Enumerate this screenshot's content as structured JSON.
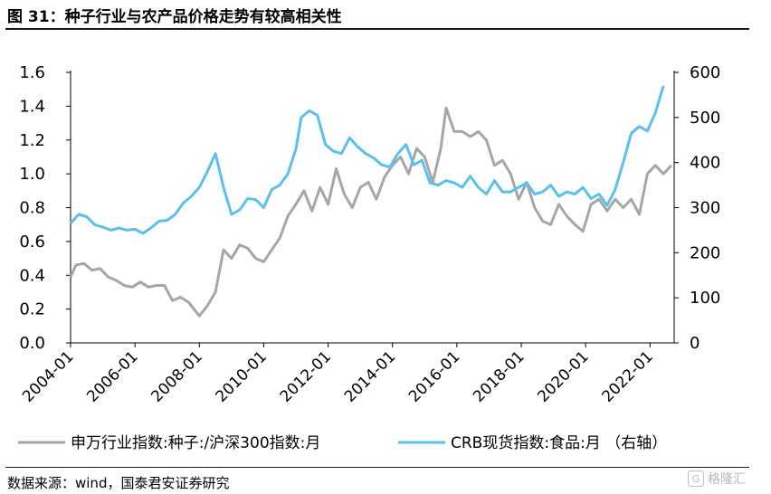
{
  "figure": {
    "title": "图 31：种子行业与农产品价格走势有较高相关性",
    "source": "数据来源：wind，国泰君安证券研究",
    "watermark": "格隆汇"
  },
  "chart_data": {
    "type": "line",
    "title": "图 31：种子行业与农产品价格走势有较高相关性",
    "xlabel": "",
    "ylabel": "",
    "x_ticks": [
      "2004-01",
      "2006-01",
      "2008-01",
      "2010-01",
      "2012-01",
      "2014-01",
      "2016-01",
      "2018-01",
      "2020-01",
      "2022-01"
    ],
    "y_left": {
      "lim": [
        0,
        1.6
      ],
      "ticks": [
        "0.0",
        "0.2",
        "0.4",
        "0.6",
        "0.8",
        "1.0",
        "1.2",
        "1.4",
        "1.6"
      ]
    },
    "y_right": {
      "lim": [
        0,
        600
      ],
      "ticks": [
        "0",
        "100",
        "200",
        "300",
        "400",
        "500",
        "600"
      ]
    },
    "grid": false,
    "legend_position": "bottom",
    "colors": {
      "seed": "#a6a6a6",
      "crb": "#5bc0eb"
    },
    "series": [
      {
        "name": "申万行业指数:种子:/沪深300指数:月",
        "axis": "left",
        "color": "#a6a6a6",
        "points": [
          [
            "2004-01",
            0.39
          ],
          [
            "2004-03",
            0.46
          ],
          [
            "2004-06",
            0.47
          ],
          [
            "2004-09",
            0.43
          ],
          [
            "2004-12",
            0.44
          ],
          [
            "2005-03",
            0.39
          ],
          [
            "2005-06",
            0.37
          ],
          [
            "2005-09",
            0.34
          ],
          [
            "2005-12",
            0.33
          ],
          [
            "2006-03",
            0.36
          ],
          [
            "2006-06",
            0.33
          ],
          [
            "2006-09",
            0.34
          ],
          [
            "2006-12",
            0.34
          ],
          [
            "2007-03",
            0.25
          ],
          [
            "2007-06",
            0.27
          ],
          [
            "2007-09",
            0.24
          ],
          [
            "2007-12",
            0.18
          ],
          [
            "2008-01",
            0.16
          ],
          [
            "2008-04",
            0.22
          ],
          [
            "2008-07",
            0.3
          ],
          [
            "2008-10",
            0.55
          ],
          [
            "2009-01",
            0.5
          ],
          [
            "2009-04",
            0.58
          ],
          [
            "2009-07",
            0.56
          ],
          [
            "2009-10",
            0.5
          ],
          [
            "2010-01",
            0.48
          ],
          [
            "2010-04",
            0.55
          ],
          [
            "2010-07",
            0.62
          ],
          [
            "2010-10",
            0.75
          ],
          [
            "2011-01",
            0.82
          ],
          [
            "2011-04",
            0.9
          ],
          [
            "2011-07",
            0.78
          ],
          [
            "2011-10",
            0.92
          ],
          [
            "2012-01",
            0.82
          ],
          [
            "2012-04",
            1.03
          ],
          [
            "2012-07",
            0.88
          ],
          [
            "2012-10",
            0.8
          ],
          [
            "2013-01",
            0.92
          ],
          [
            "2013-04",
            0.95
          ],
          [
            "2013-07",
            0.85
          ],
          [
            "2013-10",
            0.98
          ],
          [
            "2014-01",
            1.05
          ],
          [
            "2014-04",
            1.1
          ],
          [
            "2014-07",
            1.0
          ],
          [
            "2014-10",
            1.15
          ],
          [
            "2015-01",
            1.1
          ],
          [
            "2015-04",
            0.95
          ],
          [
            "2015-07",
            1.15
          ],
          [
            "2015-09",
            1.39
          ],
          [
            "2015-12",
            1.25
          ],
          [
            "2016-03",
            1.25
          ],
          [
            "2016-06",
            1.22
          ],
          [
            "2016-09",
            1.25
          ],
          [
            "2016-12",
            1.2
          ],
          [
            "2017-03",
            1.05
          ],
          [
            "2017-06",
            1.08
          ],
          [
            "2017-09",
            1.0
          ],
          [
            "2017-12",
            0.85
          ],
          [
            "2018-03",
            0.95
          ],
          [
            "2018-06",
            0.8
          ],
          [
            "2018-09",
            0.72
          ],
          [
            "2018-12",
            0.7
          ],
          [
            "2019-03",
            0.82
          ],
          [
            "2019-06",
            0.75
          ],
          [
            "2019-09",
            0.7
          ],
          [
            "2019-12",
            0.66
          ],
          [
            "2020-03",
            0.82
          ],
          [
            "2020-06",
            0.85
          ],
          [
            "2020-09",
            0.78
          ],
          [
            "2020-12",
            0.85
          ],
          [
            "2021-03",
            0.8
          ],
          [
            "2021-06",
            0.85
          ],
          [
            "2021-09",
            0.76
          ],
          [
            "2021-12",
            1.0
          ],
          [
            "2022-03",
            1.05
          ],
          [
            "2022-06",
            1.0
          ],
          [
            "2022-09",
            1.05
          ]
        ]
      },
      {
        "name": "CRB现货指数:食品:月 （右轴）",
        "axis": "right",
        "color": "#5bc0eb",
        "points": [
          [
            "2004-01",
            265
          ],
          [
            "2004-04",
            285
          ],
          [
            "2004-07",
            280
          ],
          [
            "2004-10",
            262
          ],
          [
            "2005-01",
            257
          ],
          [
            "2005-04",
            250
          ],
          [
            "2005-07",
            255
          ],
          [
            "2005-10",
            250
          ],
          [
            "2006-01",
            252
          ],
          [
            "2006-04",
            243
          ],
          [
            "2006-07",
            255
          ],
          [
            "2006-10",
            270
          ],
          [
            "2007-01",
            272
          ],
          [
            "2007-04",
            285
          ],
          [
            "2007-07",
            310
          ],
          [
            "2007-10",
            325
          ],
          [
            "2008-01",
            345
          ],
          [
            "2008-04",
            380
          ],
          [
            "2008-07",
            420
          ],
          [
            "2008-10",
            345
          ],
          [
            "2009-01",
            285
          ],
          [
            "2009-04",
            295
          ],
          [
            "2009-07",
            320
          ],
          [
            "2009-10",
            318
          ],
          [
            "2010-01",
            300
          ],
          [
            "2010-04",
            340
          ],
          [
            "2010-07",
            350
          ],
          [
            "2010-10",
            375
          ],
          [
            "2011-01",
            430
          ],
          [
            "2011-03",
            500
          ],
          [
            "2011-06",
            515
          ],
          [
            "2011-09",
            505
          ],
          [
            "2011-12",
            440
          ],
          [
            "2012-03",
            425
          ],
          [
            "2012-06",
            420
          ],
          [
            "2012-09",
            455
          ],
          [
            "2012-12",
            435
          ],
          [
            "2013-03",
            420
          ],
          [
            "2013-06",
            410
          ],
          [
            "2013-09",
            395
          ],
          [
            "2013-12",
            390
          ],
          [
            "2014-03",
            420
          ],
          [
            "2014-06",
            440
          ],
          [
            "2014-09",
            395
          ],
          [
            "2014-12",
            405
          ],
          [
            "2015-03",
            355
          ],
          [
            "2015-06",
            350
          ],
          [
            "2015-09",
            360
          ],
          [
            "2015-12",
            355
          ],
          [
            "2016-03",
            345
          ],
          [
            "2016-06",
            370
          ],
          [
            "2016-09",
            345
          ],
          [
            "2016-12",
            330
          ],
          [
            "2017-03",
            360
          ],
          [
            "2017-06",
            335
          ],
          [
            "2017-09",
            335
          ],
          [
            "2017-12",
            345
          ],
          [
            "2018-03",
            355
          ],
          [
            "2018-06",
            330
          ],
          [
            "2018-09",
            335
          ],
          [
            "2018-12",
            350
          ],
          [
            "2019-03",
            325
          ],
          [
            "2019-06",
            335
          ],
          [
            "2019-09",
            330
          ],
          [
            "2019-12",
            345
          ],
          [
            "2020-03",
            320
          ],
          [
            "2020-06",
            330
          ],
          [
            "2020-09",
            305
          ],
          [
            "2020-12",
            340
          ],
          [
            "2021-03",
            400
          ],
          [
            "2021-06",
            465
          ],
          [
            "2021-09",
            480
          ],
          [
            "2021-12",
            470
          ],
          [
            "2022-03",
            510
          ],
          [
            "2022-06",
            570
          ]
        ]
      }
    ]
  }
}
